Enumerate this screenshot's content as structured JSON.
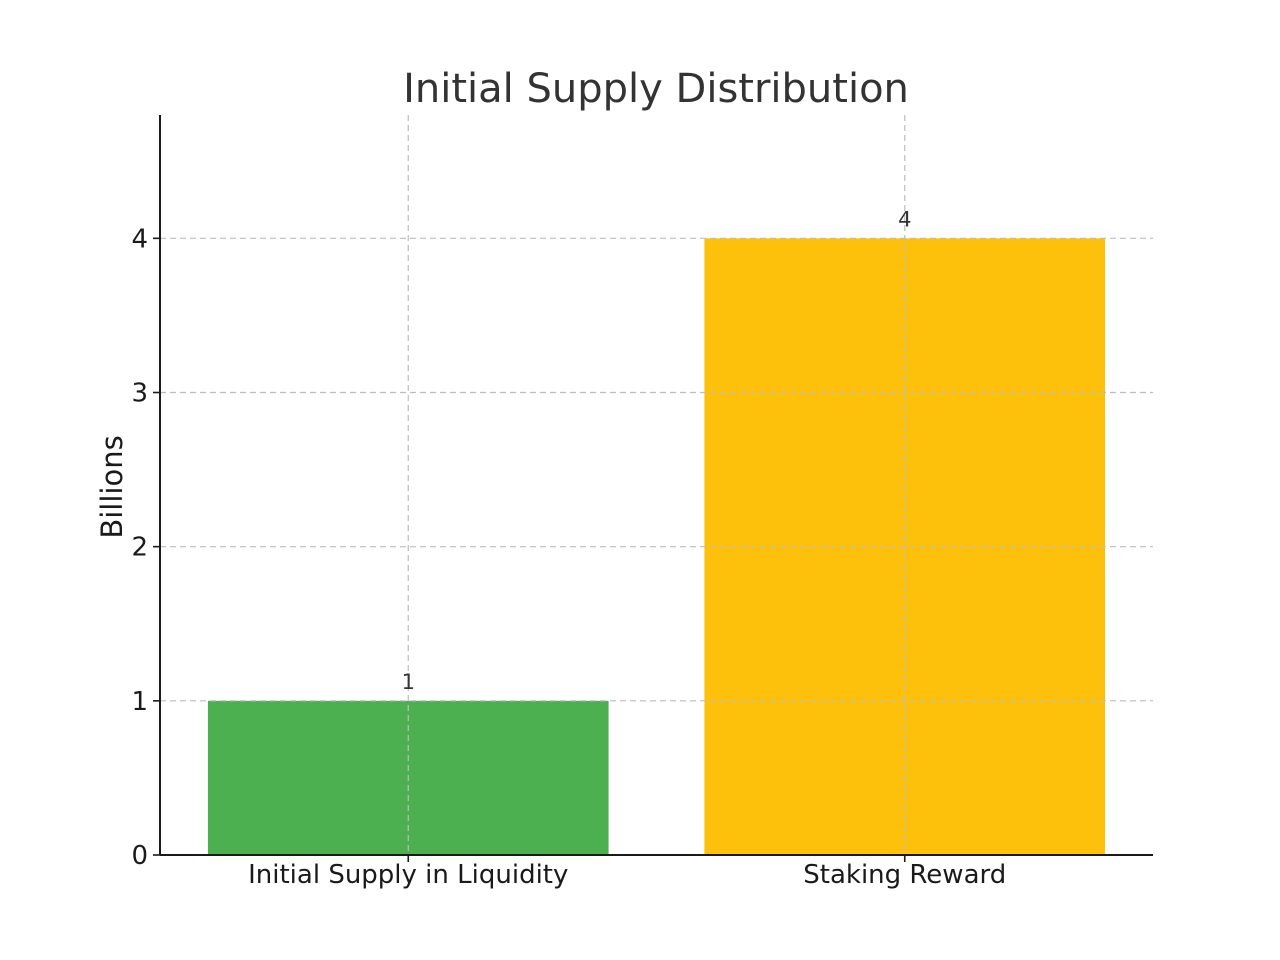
{
  "chart_data": {
    "type": "bar",
    "title": "Initial Supply Distribution",
    "xlabel": "",
    "ylabel": "Billions",
    "categories": [
      "Initial Supply in Liquidity",
      "Staking Reward"
    ],
    "values": [
      1,
      4
    ],
    "data_labels": [
      "1",
      "4"
    ],
    "colors": [
      "#4caf50",
      "#fdc10b"
    ],
    "ylim": [
      0,
      4.8
    ],
    "yticks": [
      0,
      1,
      2,
      3,
      4
    ],
    "ytick_labels": [
      "0",
      "1",
      "2",
      "3",
      "4"
    ],
    "grid": true,
    "grid_style": "dashed",
    "legend": "none"
  }
}
